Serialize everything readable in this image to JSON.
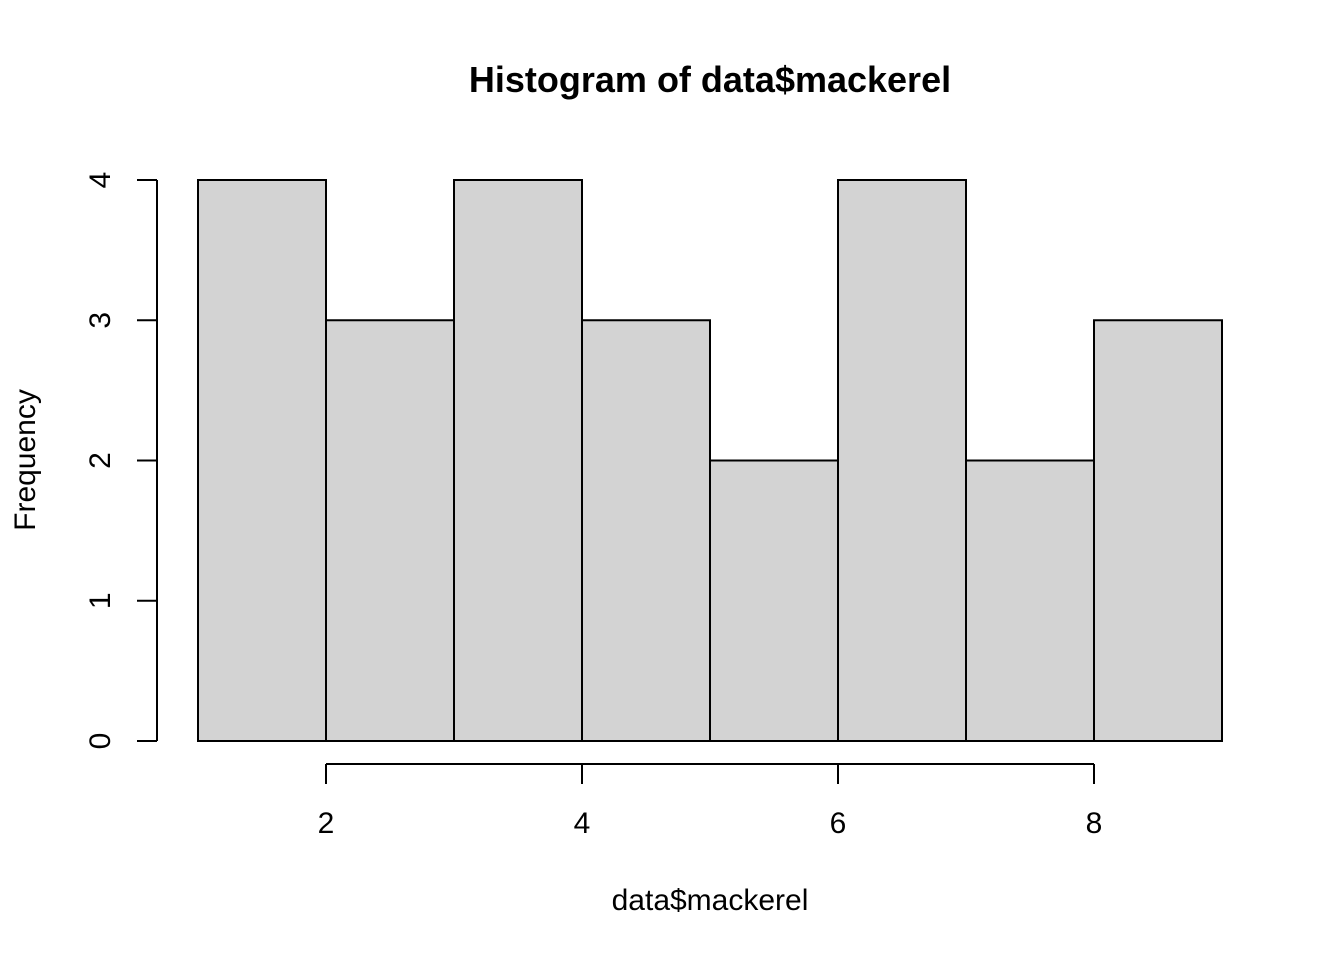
{
  "chart_data": {
    "type": "bar",
    "title": "Histogram of data$mackerel",
    "xlabel": "data$mackerel",
    "ylabel": "Frequency",
    "bins": [
      {
        "start": 1,
        "end": 2,
        "count": 4
      },
      {
        "start": 2,
        "end": 3,
        "count": 3
      },
      {
        "start": 3,
        "end": 4,
        "count": 4
      },
      {
        "start": 4,
        "end": 5,
        "count": 3
      },
      {
        "start": 5,
        "end": 6,
        "count": 2
      },
      {
        "start": 6,
        "end": 7,
        "count": 4
      },
      {
        "start": 7,
        "end": 8,
        "count": 2
      },
      {
        "start": 8,
        "end": 9,
        "count": 3
      }
    ],
    "xlim": [
      1,
      9
    ],
    "ylim": [
      0,
      4
    ],
    "xticks": [
      2,
      4,
      6,
      8
    ],
    "yticks": [
      0,
      1,
      2,
      3,
      4
    ],
    "bar_color": "#d3d3d3",
    "grid": false
  }
}
